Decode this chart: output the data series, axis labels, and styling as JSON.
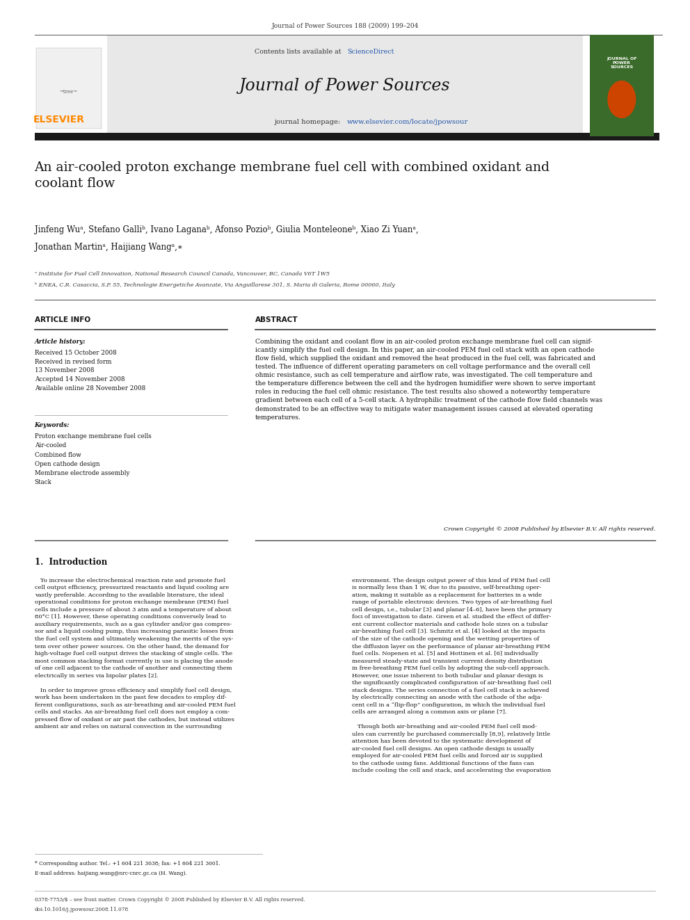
{
  "page_width": 9.92,
  "page_height": 13.23,
  "background_color": "#ffffff",
  "journal_info_line": "Journal of Power Sources 188 (2009) 199–204",
  "contents_line": "Contents lists available at",
  "sciencedirect_text": "ScienceDirect",
  "journal_name": "Journal of Power Sources",
  "header_bg_color": "#e8e8e8",
  "dark_bar_color": "#1a1a1a",
  "elsevier_color": "#ff8800",
  "link_color": "#2255aa",
  "title": "An air-cooled proton exchange membrane fuel cell with combined oxidant and\ncoolant flow",
  "authors_line1": "Jinfeng Wuᵃ, Stefano Galliᵇ, Ivano Laganaᵇ, Afonso Pozioᵇ, Giulia Monteleoneᵇ, Xiao Zi Yuanᵃ,",
  "authors_line2": "Jonathan Martinᵃ, Haijiang Wangᵃ,∗",
  "affil_a": "ᵃ Institute for Fuel Cell Innovation, National Research Council Canada, Vancouver, BC, Canada V6T 1W5",
  "affil_b": "ᵇ ENEA, C.R. Casaccia, S.P. 55, Technologie Energetiche Avanzate, Via Anguillarese 301, S. Maria di Galeria, Rome 00060, Italy",
  "article_info_label": "ARTICLE INFO",
  "abstract_label": "ABSTRACT",
  "article_history_label": "Article history:",
  "article_history": "Received 15 October 2008\nReceived in revised form\n13 November 2008\nAccepted 14 November 2008\nAvailable online 28 November 2008",
  "keywords_label": "Keywords:",
  "keywords": "Proton exchange membrane fuel cells\nAir-cooled\nCombined flow\nOpen cathode design\nMembrane electrode assembly\nStack",
  "abstract_text": "Combining the oxidant and coolant flow in an air-cooled proton exchange membrane fuel cell can signif-\nicantly simplify the fuel cell design. In this paper, an air-cooled PEM fuel cell stack with an open cathode\nflow field, which supplied the oxidant and removed the heat produced in the fuel cell, was fabricated and\ntested. The influence of different operating parameters on cell voltage performance and the overall cell\nohmic resistance, such as cell temperature and airflow rate, was investigated. The cell temperature and\nthe temperature difference between the cell and the hydrogen humidifier were shown to serve important\nroles in reducing the fuel cell ohmic resistance. The test results also showed a noteworthy temperature\ngradient between each cell of a 5-cell stack. A hydrophilic treatment of the cathode flow field channels was\ndemonstrated to be an effective way to mitigate water management issues caused at elevated operating\ntemperatures.",
  "crown_copyright": "Crown Copyright © 2008 Published by Elsevier B.V. All rights reserved.",
  "intro_heading": "1.  Introduction",
  "intro_col1": "   To increase the electrochemical reaction rate and promote fuel\ncell output efficiency, pressurized reactants and liquid cooling are\nvastly preferable. According to the available literature, the ideal\noperational conditions for proton exchange membrane (PEM) fuel\ncells include a pressure of about 3 atm and a temperature of about\n80°C [1]. However, these operating conditions conversely lead to\nauxiliary requirements, such as a gas cylinder and/or gas compres-\nsor and a liquid cooling pump, thus increasing parasitic losses from\nthe fuel cell system and ultimately weakening the merits of the sys-\ntem over other power sources. On the other hand, the demand for\nhigh-voltage fuel cell output drives the stacking of single cells. The\nmost common stacking format currently in use is placing the anode\nof one cell adjacent to the cathode of another and connecting them\nelectrically in series via bipolar plates [2].\n\n   In order to improve gross efficiency and simplify fuel cell design,\nwork has been undertaken in the past few decades to employ dif-\nferent configurations, such as air-breathing and air-cooled PEM fuel\ncells and stacks. An air-breathing fuel cell does not employ a com-\npressed flow of oxidant or air past the cathodes, but instead utilizes\nambient air and relies on natural convection in the surrounding",
  "intro_col2": "environment. The design output power of this kind of PEM fuel cell\nis normally less than 1 W, due to its passive, self-breathing oper-\nation, making it suitable as a replacement for batteries in a wide\nrange of portable electronic devices. Two types of air-breathing fuel\ncell design, i.e., tubular [3] and planar [4–6], have been the primary\nfoci of investigation to date. Green et al. studied the effect of differ-\nent current collector materials and cathode hole sizes on a tubular\nair-breathing fuel cell [3]. Schmitz et al. [4] looked at the impacts\nof the size of the cathode opening and the wetting properties of\nthe diffusion layer on the performance of planar air-breathing PEM\nfuel cells. Nopenen et al. [5] and Hottinen et al. [6] individually\nmeasured steady-state and transient current density distribution\nin free-breathing PEM fuel cells by adopting the sub-cell approach.\nHowever, one issue inherent to both tubular and planar design is\nthe significantly complicated configuration of air-breathing fuel cell\nstack designs. The series connection of a fuel cell stack is achieved\nby electrically connecting an anode with the cathode of the adja-\ncent cell in a “flip-flop” configuration, in which the individual fuel\ncells are arranged along a common axis or plane [7].\n\n   Though both air-breathing and air-cooled PEM fuel cell mod-\nules can currently be purchased commercially [8,9], relatively little\nattention has been devoted to the systematic development of\nair-cooled fuel cell designs. An open cathode design is usually\nemployed for air-cooled PEM fuel cells and forced air is supplied\nto the cathode using fans. Additional functions of the fans can\ninclude cooling the cell and stack, and accelerating the evaporation",
  "footnote_star": "* Corresponding author. Tel.: +1 604 221 3038; fax: +1 604 221 3001.",
  "footnote_email": "E-mail address: haijiang.wang@nrc-cnrc.gc.ca (H. Wang).",
  "bottom_line1": "0378-7753/$ – see front matter. Crown Copyright © 2008 Published by Elsevier B.V. All rights reserved.",
  "bottom_line2": "doi:10.1016/j.jpowsour.2008.11.078",
  "cover_bg_color": "#3a6b2a",
  "cover_circle_color": "#cc4400",
  "cover_text": "JOURNAL OF\nPOWER\nSOURCES"
}
